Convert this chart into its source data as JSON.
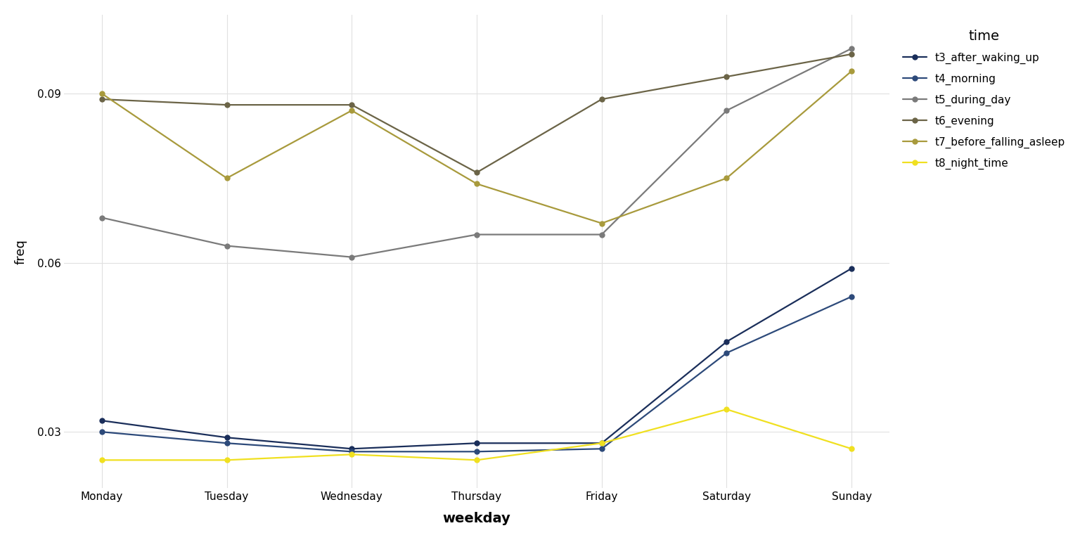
{
  "weekdays": [
    "Monday",
    "Tuesday",
    "Wednesday",
    "Thursday",
    "Friday",
    "Saturday",
    "Sunday"
  ],
  "series": [
    {
      "key": "t3_after_waking_up",
      "values": [
        0.032,
        0.029,
        0.027,
        0.028,
        0.028,
        0.046,
        0.059
      ],
      "color": "#1a2e5a",
      "label": "t3_after_waking_up"
    },
    {
      "key": "t4_morning",
      "values": [
        0.03,
        0.028,
        0.0265,
        0.0265,
        0.027,
        0.044,
        0.054
      ],
      "color": "#2d4a7a",
      "label": "t4_morning"
    },
    {
      "key": "t5_during_day",
      "values": [
        0.068,
        0.063,
        0.061,
        0.065,
        0.065,
        0.087,
        0.098
      ],
      "color": "#7a7a7a",
      "label": "t5_during_day"
    },
    {
      "key": "t6_evening",
      "values": [
        0.089,
        0.088,
        0.088,
        0.076,
        0.089,
        0.093,
        0.097
      ],
      "color": "#6b6447",
      "label": "t6_evening"
    },
    {
      "key": "t7_before_falling_asleep",
      "values": [
        0.09,
        0.075,
        0.087,
        0.074,
        0.067,
        0.075,
        0.094
      ],
      "color": "#a89a3c",
      "label": "t7_before_falling_asleep"
    },
    {
      "key": "t8_night_time",
      "values": [
        0.025,
        0.025,
        0.026,
        0.025,
        0.028,
        0.034,
        0.027
      ],
      "color": "#f0e020",
      "label": "t8_night_time"
    }
  ],
  "xlabel": "weekday",
  "ylabel": "freq",
  "legend_title": "time",
  "ylim": [
    0.02,
    0.104
  ],
  "yticks": [
    0.03,
    0.06,
    0.09
  ],
  "background_color": "#ffffff",
  "grid_color": "#e0e0e0",
  "axis_fontsize": 12,
  "legend_fontsize": 11,
  "tick_fontsize": 11
}
